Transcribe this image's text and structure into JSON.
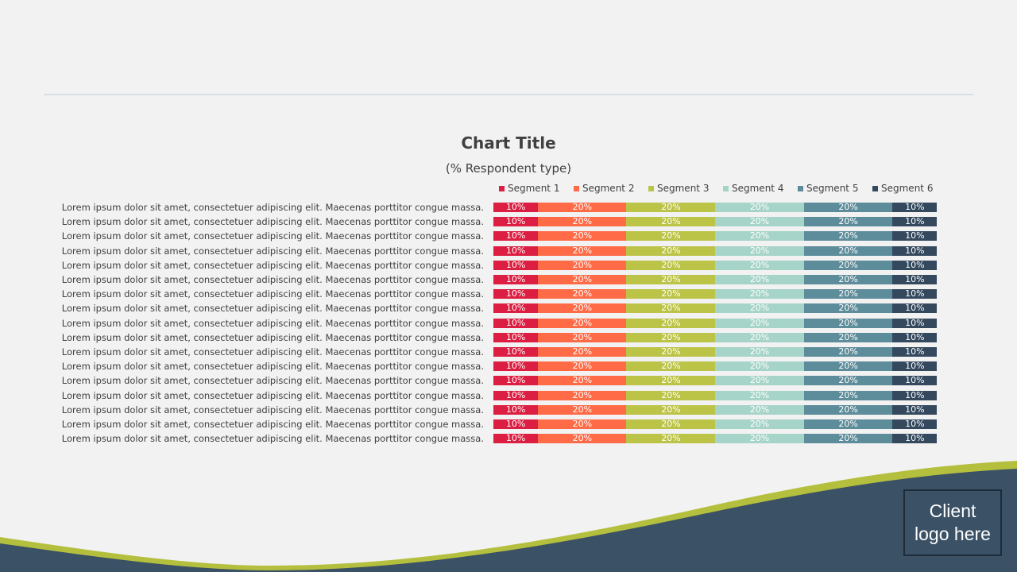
{
  "colors": {
    "background": "#f2f2f2",
    "rule": "#d6dfe8",
    "wave_dark": "#3b5166",
    "wave_accent": "#b5bf3e",
    "text": "#404040"
  },
  "logo": {
    "line1": "Client",
    "line2": "logo here"
  },
  "chart_data": {
    "type": "bar",
    "orientation": "horizontal",
    "stacked": "100%",
    "title": "Chart Title",
    "subtitle": "(% Respondent type)",
    "xlim": [
      0,
      100
    ],
    "legend_position": "top",
    "categories": [
      "Lorem ipsum dolor sit amet, consectetuer adipiscing elit. Maecenas porttitor congue massa.",
      "Lorem ipsum dolor sit amet, consectetuer adipiscing elit. Maecenas porttitor congue massa.",
      "Lorem ipsum dolor sit amet, consectetuer adipiscing elit. Maecenas porttitor congue massa.",
      "Lorem ipsum dolor sit amet, consectetuer adipiscing elit. Maecenas porttitor congue massa.",
      "Lorem ipsum dolor sit amet, consectetuer adipiscing elit. Maecenas porttitor congue massa.",
      "Lorem ipsum dolor sit amet, consectetuer adipiscing elit. Maecenas porttitor congue massa.",
      "Lorem ipsum dolor sit amet, consectetuer adipiscing elit. Maecenas porttitor congue massa.",
      "Lorem ipsum dolor sit amet, consectetuer adipiscing elit. Maecenas porttitor congue massa.",
      "Lorem ipsum dolor sit amet, consectetuer adipiscing elit. Maecenas porttitor congue massa.",
      "Lorem ipsum dolor sit amet, consectetuer adipiscing elit. Maecenas porttitor congue massa.",
      "Lorem ipsum dolor sit amet, consectetuer adipiscing elit. Maecenas porttitor congue massa.",
      "Lorem ipsum dolor sit amet, consectetuer adipiscing elit. Maecenas porttitor congue massa.",
      "Lorem ipsum dolor sit amet, consectetuer adipiscing elit. Maecenas porttitor congue massa.",
      "Lorem ipsum dolor sit amet, consectetuer adipiscing elit. Maecenas porttitor congue massa.",
      "Lorem ipsum dolor sit amet, consectetuer adipiscing elit. Maecenas porttitor congue massa.",
      "Lorem ipsum dolor sit amet, consectetuer adipiscing elit. Maecenas porttitor congue massa.",
      "Lorem ipsum dolor sit amet, consectetuer adipiscing elit. Maecenas porttitor congue massa."
    ],
    "series": [
      {
        "name": "Segment 1",
        "color": "#dc1e42",
        "values": [
          10,
          10,
          10,
          10,
          10,
          10,
          10,
          10,
          10,
          10,
          10,
          10,
          10,
          10,
          10,
          10,
          10
        ]
      },
      {
        "name": "Segment 2",
        "color": "#ff6b47",
        "values": [
          20,
          20,
          20,
          20,
          20,
          20,
          20,
          20,
          20,
          20,
          20,
          20,
          20,
          20,
          20,
          20,
          20
        ]
      },
      {
        "name": "Segment 3",
        "color": "#bcc447",
        "values": [
          20,
          20,
          20,
          20,
          20,
          20,
          20,
          20,
          20,
          20,
          20,
          20,
          20,
          20,
          20,
          20,
          20
        ]
      },
      {
        "name": "Segment 4",
        "color": "#a6d4c8",
        "values": [
          20,
          20,
          20,
          20,
          20,
          20,
          20,
          20,
          20,
          20,
          20,
          20,
          20,
          20,
          20,
          20,
          20
        ]
      },
      {
        "name": "Segment 5",
        "color": "#5d8c9a",
        "values": [
          20,
          20,
          20,
          20,
          20,
          20,
          20,
          20,
          20,
          20,
          20,
          20,
          20,
          20,
          20,
          20,
          20
        ]
      },
      {
        "name": "Segment 6",
        "color": "#34495e",
        "values": [
          10,
          10,
          10,
          10,
          10,
          10,
          10,
          10,
          10,
          10,
          10,
          10,
          10,
          10,
          10,
          10,
          10
        ]
      }
    ],
    "value_label_suffix": "%"
  }
}
